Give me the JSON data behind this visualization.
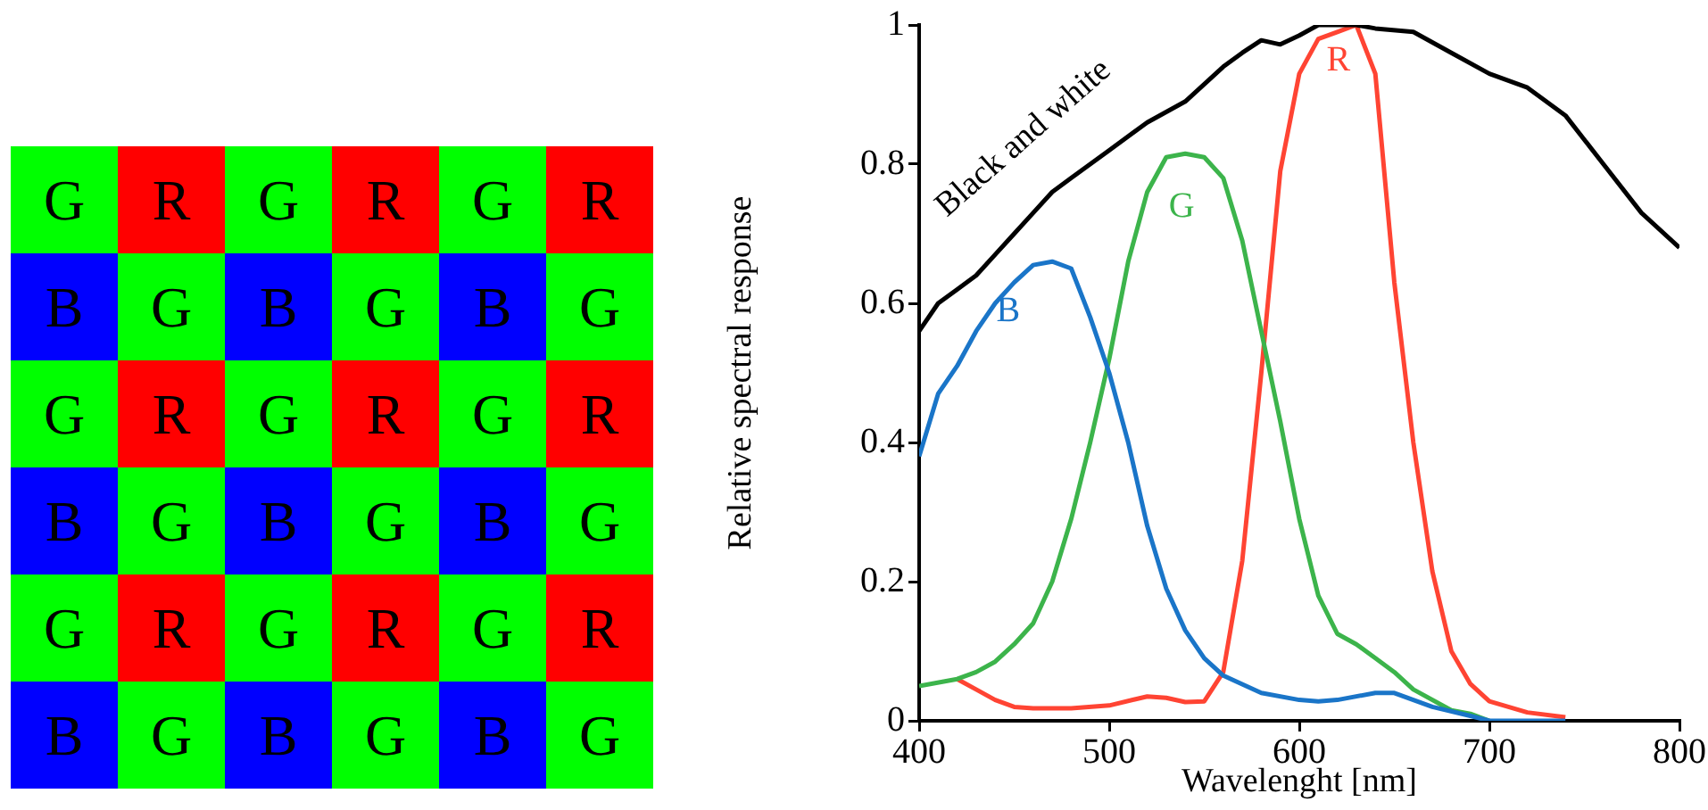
{
  "chart_data": [
    {
      "type": "other",
      "annotations": [
        "G",
        "R",
        "G",
        "R",
        "G",
        "R",
        "B",
        "G",
        "B",
        "G",
        "B",
        "G",
        "G",
        "R",
        "G",
        "R",
        "G",
        "R",
        "B",
        "G",
        "B",
        "G",
        "B",
        "G",
        "G",
        "R",
        "G",
        "R",
        "G",
        "R",
        "B",
        "G",
        "B",
        "G",
        "B",
        "G"
      ],
      "colors": [
        "#00ff00",
        "#ff0000",
        "#00ff00",
        "#ff0000",
        "#00ff00",
        "#ff0000",
        "#0000ff",
        "#00ff00",
        "#0000ff",
        "#00ff00",
        "#0000ff",
        "#00ff00",
        "#00ff00",
        "#ff0000",
        "#00ff00",
        "#ff0000",
        "#00ff00",
        "#ff0000",
        "#0000ff",
        "#00ff00",
        "#0000ff",
        "#00ff00",
        "#0000ff",
        "#00ff00",
        "#00ff00",
        "#ff0000",
        "#00ff00",
        "#ff0000",
        "#00ff00",
        "#ff0000",
        "#0000ff",
        "#00ff00",
        "#0000ff",
        "#00ff00",
        "#0000ff",
        "#00ff00"
      ]
    },
    {
      "type": "line",
      "xlabel": "Wavelenght [nm]",
      "ylabel": "Relative spectral response",
      "xlim": [
        400,
        800
      ],
      "xticks": [
        400,
        500,
        600,
        700,
        800
      ],
      "ylim": [
        0,
        1
      ],
      "yticks": [
        0,
        0.2,
        0.4,
        0.6,
        0.8,
        1
      ],
      "series": [
        {
          "name": "Black and white",
          "color": "#000000",
          "x": [
            400,
            410,
            420,
            430,
            440,
            450,
            460,
            470,
            480,
            500,
            520,
            540,
            560,
            570,
            580,
            590,
            600,
            610,
            630,
            640,
            660,
            680,
            700,
            720,
            740,
            760,
            780,
            800
          ],
          "values": [
            0.56,
            0.6,
            0.62,
            0.64,
            0.67,
            0.7,
            0.73,
            0.76,
            0.78,
            0.82,
            0.86,
            0.89,
            0.94,
            0.96,
            0.978,
            0.972,
            0.985,
            1.0,
            1.0,
            0.995,
            0.99,
            0.96,
            0.93,
            0.91,
            0.87,
            0.8,
            0.73,
            0.68
          ]
        },
        {
          "name": "B",
          "color": "#1a75c8",
          "x": [
            400,
            410,
            420,
            430,
            440,
            450,
            460,
            470,
            480,
            490,
            500,
            510,
            520,
            530,
            540,
            550,
            560,
            580,
            600,
            610,
            620,
            640,
            650,
            670,
            690,
            700,
            740
          ],
          "values": [
            0.38,
            0.47,
            0.51,
            0.56,
            0.6,
            0.63,
            0.655,
            0.66,
            0.65,
            0.58,
            0.5,
            0.4,
            0.28,
            0.19,
            0.13,
            0.09,
            0.065,
            0.04,
            0.03,
            0.028,
            0.03,
            0.04,
            0.04,
            0.02,
            0.007,
            0,
            0
          ]
        },
        {
          "name": "G",
          "color": "#3cb44b",
          "x": [
            400,
            420,
            430,
            440,
            450,
            460,
            470,
            480,
            490,
            500,
            510,
            520,
            530,
            540,
            550,
            560,
            570,
            580,
            590,
            600,
            610,
            620,
            630,
            640,
            650,
            660,
            680,
            690,
            700
          ],
          "values": [
            0.05,
            0.06,
            0.07,
            0.085,
            0.11,
            0.14,
            0.2,
            0.29,
            0.4,
            0.52,
            0.66,
            0.76,
            0.81,
            0.815,
            0.81,
            0.78,
            0.69,
            0.56,
            0.43,
            0.29,
            0.18,
            0.125,
            0.11,
            0.09,
            0.07,
            0.045,
            0.015,
            0.01,
            0
          ]
        },
        {
          "name": "R",
          "color": "#ff4433",
          "x": [
            420,
            430,
            440,
            450,
            460,
            480,
            500,
            520,
            530,
            540,
            550,
            560,
            570,
            580,
            590,
            600,
            610,
            620,
            630,
            640,
            650,
            660,
            670,
            680,
            690,
            700,
            720,
            740
          ],
          "values": [
            0.06,
            0.045,
            0.03,
            0.02,
            0.018,
            0.018,
            0.022,
            0.035,
            0.033,
            0.027,
            0.028,
            0.07,
            0.23,
            0.5,
            0.79,
            0.93,
            0.98,
            0.99,
            1.0,
            0.93,
            0.63,
            0.4,
            0.215,
            0.1,
            0.053,
            0.028,
            0.012,
            0.005
          ]
        }
      ]
    }
  ]
}
